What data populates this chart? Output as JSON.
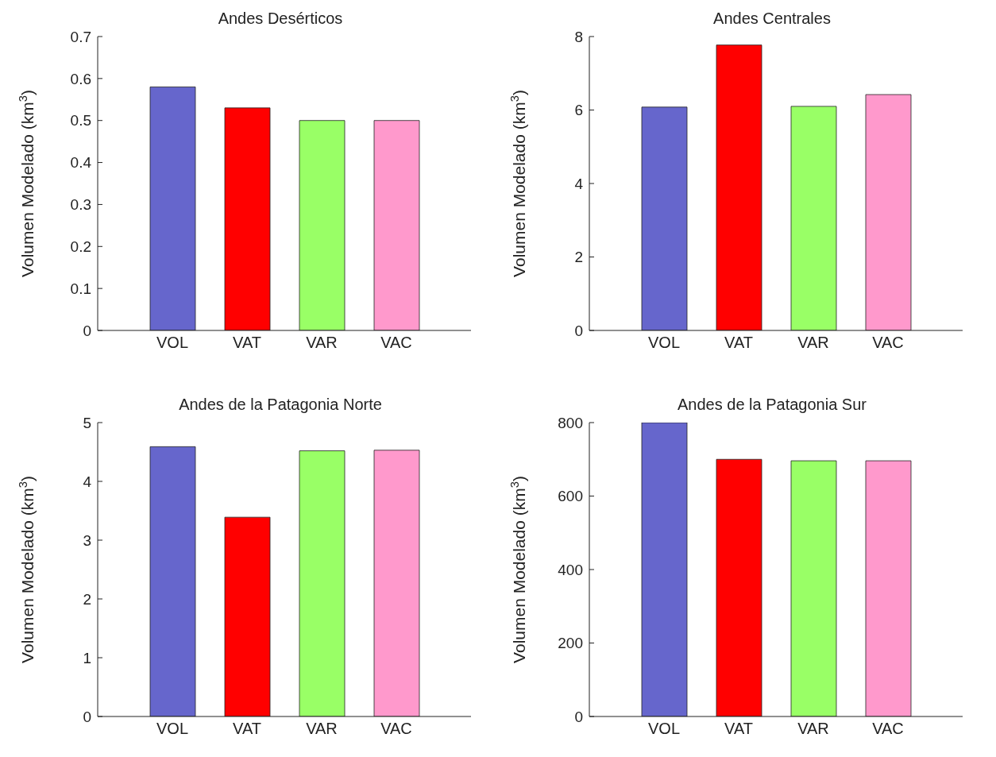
{
  "chart_data": [
    {
      "type": "bar",
      "title": "Andes Desérticos",
      "ylabel": "Volumen Modelado (km$^{3}$)",
      "categories": [
        "VOL",
        "VAT",
        "VAR",
        "VAC"
      ],
      "values": [
        0.58,
        0.53,
        0.5,
        0.5
      ],
      "colors": [
        "#6666cc",
        "#ff0000",
        "#99ff66",
        "#ff99cc"
      ],
      "ylim": [
        0,
        0.7
      ],
      "yticks": [
        0,
        0.1,
        0.2,
        0.3,
        0.4,
        0.5,
        0.6,
        0.7
      ],
      "grid": false
    },
    {
      "type": "bar",
      "title": "Andes Centrales",
      "ylabel": "Volumen Modelado (km$^{3}$)",
      "categories": [
        "VOL",
        "VAT",
        "VAR",
        "VAC"
      ],
      "values": [
        6.08,
        7.77,
        6.1,
        6.42
      ],
      "colors": [
        "#6666cc",
        "#ff0000",
        "#99ff66",
        "#ff99cc"
      ],
      "ylim": [
        0,
        8
      ],
      "yticks": [
        0,
        2,
        4,
        6,
        8
      ],
      "grid": false
    },
    {
      "type": "bar",
      "title": "Andes de la Patagonia Norte",
      "ylabel": "Volumen Modelado (km$^{3}$)",
      "categories": [
        "VOL",
        "VAT",
        "VAR",
        "VAC"
      ],
      "values": [
        4.59,
        3.39,
        4.52,
        4.53
      ],
      "colors": [
        "#6666cc",
        "#ff0000",
        "#99ff66",
        "#ff99cc"
      ],
      "ylim": [
        0,
        5
      ],
      "yticks": [
        0,
        1,
        2,
        3,
        4,
        5
      ],
      "grid": false
    },
    {
      "type": "bar",
      "title": "Andes de la Patagonia Sur",
      "ylabel": "Volumen Modelado (km$^{3}$)",
      "categories": [
        "VOL",
        "VAT",
        "VAR",
        "VAC"
      ],
      "values": [
        800,
        700,
        696,
        696
      ],
      "colors": [
        "#6666cc",
        "#ff0000",
        "#99ff66",
        "#ff99cc"
      ],
      "ylim": [
        0,
        800
      ],
      "yticks": [
        0,
        200,
        400,
        600,
        800
      ],
      "grid": false
    }
  ]
}
